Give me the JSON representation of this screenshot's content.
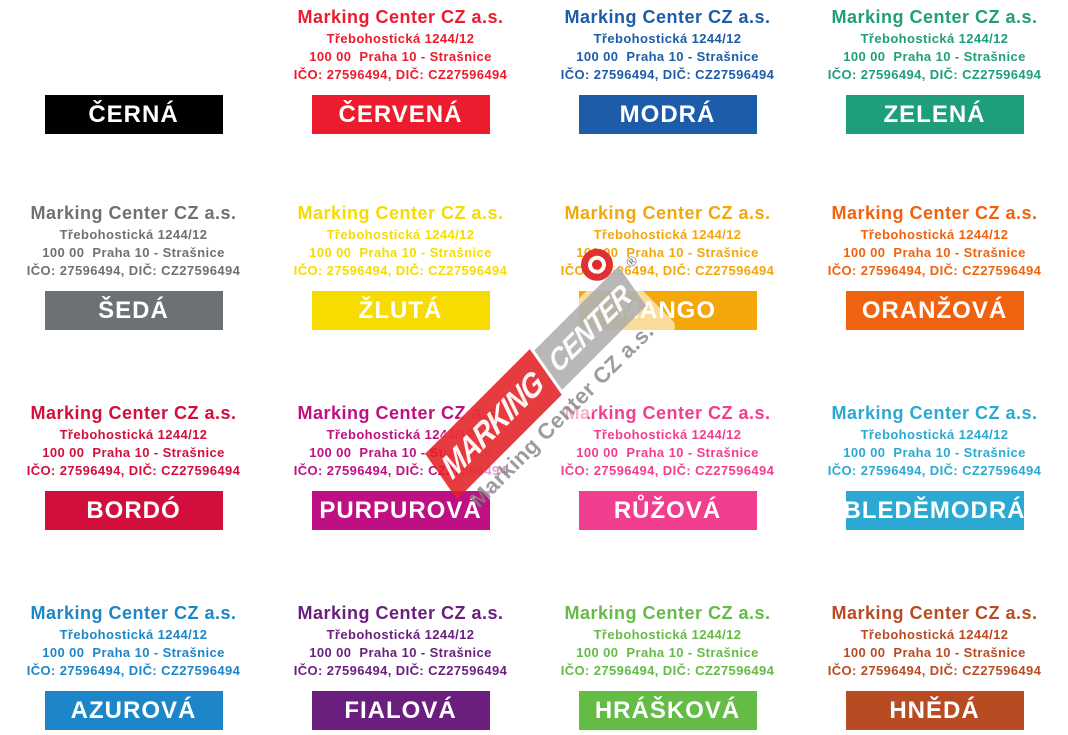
{
  "page": {
    "background": "#ffffff"
  },
  "stamp_sample": {
    "line1": "Marking Center CZ a.s.",
    "line2": "Třebohostická 1244/12",
    "line3": "100 00  Praha 10 - Strašnice",
    "line4": "IČO: 27596494, DIČ: CZ27596494"
  },
  "colors": [
    {
      "name": "ČERNÁ",
      "hex": "#000000",
      "label_color": "#ffffff",
      "show_stamp": false
    },
    {
      "name": "ČERVENÁ",
      "hex": "#EC1B2D",
      "label_color": "#ffffff",
      "show_stamp": true
    },
    {
      "name": "MODRÁ",
      "hex": "#1C5CA8",
      "label_color": "#ffffff",
      "show_stamp": true
    },
    {
      "name": "ZELENÁ",
      "hex": "#1F9E7C",
      "label_color": "#ffffff",
      "show_stamp": true
    },
    {
      "name": "ŠEDÁ",
      "hex": "#6E7173",
      "label_color": "#ffffff",
      "show_stamp": true
    },
    {
      "name": "ŽLUTÁ",
      "hex": "#F6DC00",
      "label_color": "#ffffff",
      "show_stamp": true
    },
    {
      "name": "MANGO",
      "hex": "#F3A70A",
      "label_color": "#ffffff",
      "show_stamp": true
    },
    {
      "name": "ORANŽOVÁ",
      "hex": "#EF620F",
      "label_color": "#ffffff",
      "show_stamp": true
    },
    {
      "name": "BORDÓ",
      "hex": "#D20F3C",
      "label_color": "#ffffff",
      "show_stamp": true
    },
    {
      "name": "PURPUROVÁ",
      "hex": "#BE1082",
      "label_color": "#ffffff",
      "show_stamp": true
    },
    {
      "name": "RŮŽOVÁ",
      "hex": "#F23E8E",
      "label_color": "#ffffff",
      "show_stamp": true
    },
    {
      "name": "BLEDĚMODRÁ",
      "hex": "#2BA9D2",
      "label_color": "#ffffff",
      "show_stamp": true
    },
    {
      "name": "AZUROVÁ",
      "hex": "#1D86C8",
      "label_color": "#ffffff",
      "show_stamp": true
    },
    {
      "name": "FIALOVÁ",
      "hex": "#6A1E7E",
      "label_color": "#ffffff",
      "show_stamp": true
    },
    {
      "name": "HRÁŠKOVÁ",
      "hex": "#64BB46",
      "label_color": "#ffffff",
      "show_stamp": true
    },
    {
      "name": "HNĚDÁ",
      "hex": "#B94B23",
      "label_color": "#ffffff",
      "show_stamp": true
    }
  ],
  "watermark": {
    "word1": "MARKING",
    "word2": "CENTER",
    "registered": "®",
    "subtitle": "Marking Center CZ a.s.",
    "red": "#E32126",
    "gray": "#A8A8A8"
  }
}
